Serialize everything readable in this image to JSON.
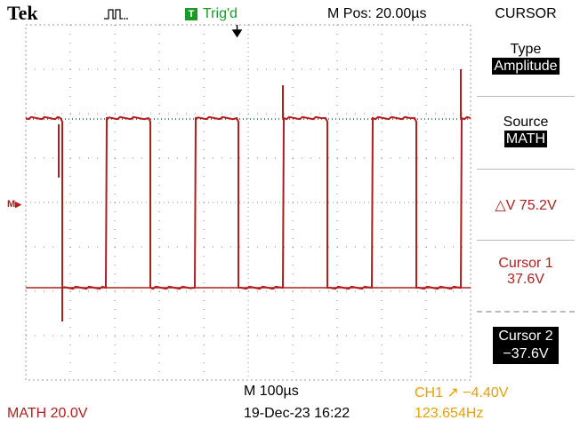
{
  "header": {
    "brand": "Tek",
    "trig_icon": "T",
    "trig_status": "Trig'd",
    "position": "M Pos: 20.00µs",
    "menu_title": "CURSOR"
  },
  "menu": {
    "type_label": "Type",
    "type_value": "Amplitude",
    "source_label": "Source",
    "source_value": "MATH",
    "delta_v": "△V 75.2V",
    "cursor1_label": "Cursor 1",
    "cursor1_value": "37.6V",
    "cursor2_label": "Cursor 2",
    "cursor2_value": "−37.6V"
  },
  "footer": {
    "math_scale": "MATH 20.0V",
    "timebase": "M 100µs",
    "datetime": "19-Dec-23 16:22",
    "trigger": "CH1 ↗ −4.40V",
    "frequency": "123.654Hz"
  },
  "markers": {
    "math_ground": "M"
  },
  "colors": {
    "trace": "#b01e1e",
    "trigger_text": "#e8a000",
    "trig_badge": "#1a9a2a",
    "grid": "#9a9a9a"
  }
}
